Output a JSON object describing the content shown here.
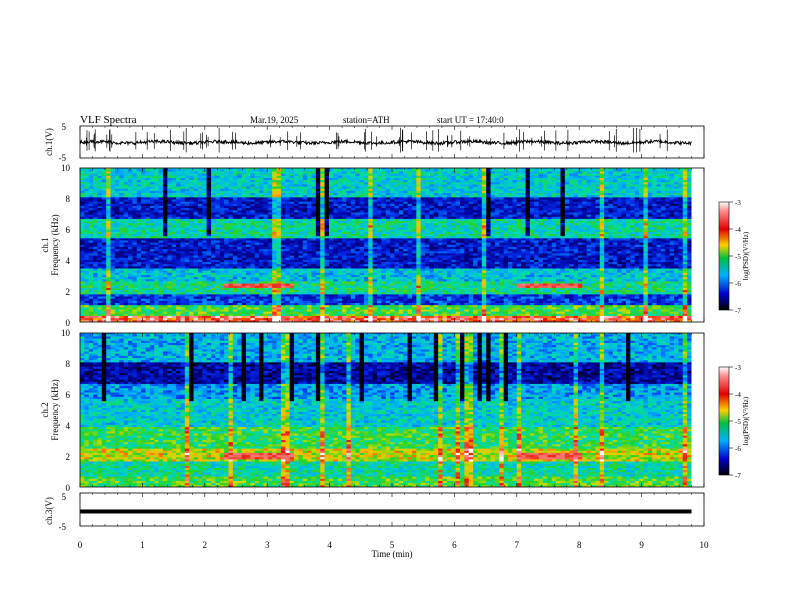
{
  "header": {
    "title": "VLF  Spectra",
    "date": "Mar.19, 2025",
    "station": "station=ATH",
    "start": "start  UT  =    17:40:0"
  },
  "colorbar": {
    "label": "log(PSD)(V²/Hz)",
    "ticks": [
      "-3",
      "-4",
      "-5",
      "-6",
      "-7"
    ],
    "stops": [
      "#ffffff",
      "#ff8080",
      "#e00000",
      "#ffcc00",
      "#00c040",
      "#00b0ff",
      "#0000cc",
      "#000000"
    ]
  },
  "chart_data": [
    {
      "type": "line",
      "panel": "ch1-waveform",
      "ylabel": "ch.1(V)",
      "ylim": [
        -5,
        5
      ],
      "yticks": [
        "5",
        "-5"
      ],
      "xlim": [
        0,
        10
      ],
      "series": [
        {
          "baseline": -0.1,
          "noise": 0.5
        }
      ]
    },
    {
      "type": "heatmap",
      "panel": "ch1-spectrogram",
      "ylabel": "ch.1\nFrequency (kHz)",
      "ylim": [
        0,
        10
      ],
      "yticks": [
        "10",
        "8",
        "6",
        "4",
        "2",
        "0"
      ],
      "xlim": [
        0,
        9.8
      ],
      "zlim": [
        -7,
        -3
      ],
      "bands_khz": [
        {
          "f0": 0.0,
          "f1": 0.4,
          "level": -3.5
        },
        {
          "f0": 0.4,
          "f1": 1.0,
          "level": -4.6
        },
        {
          "f0": 1.0,
          "f1": 1.8,
          "level": -6.0
        },
        {
          "f0": 1.8,
          "f1": 2.6,
          "level": -4.9
        },
        {
          "f0": 2.6,
          "f1": 3.4,
          "level": -5.3
        },
        {
          "f0": 3.4,
          "f1": 5.4,
          "level": -6.2
        },
        {
          "f0": 5.4,
          "f1": 6.6,
          "level": -5.0
        },
        {
          "f0": 6.6,
          "f1": 8.0,
          "level": -6.2
        },
        {
          "f0": 8.0,
          "f1": 10.0,
          "level": -5.2
        }
      ],
      "events_min": [
        [
          2.3,
          3.4
        ],
        [
          7.0,
          8.0
        ]
      ],
      "event_freq_khz": 2.3
    },
    {
      "type": "heatmap",
      "panel": "ch2-spectrogram",
      "ylabel": "ch.2\nFrequency (kHz)",
      "ylim": [
        0,
        10
      ],
      "yticks": [
        "10",
        "8",
        "6",
        "4",
        "2",
        "0"
      ],
      "xlim": [
        0,
        9.8
      ],
      "zlim": [
        -7,
        -3
      ],
      "bands_khz": [
        {
          "f0": 0.0,
          "f1": 0.6,
          "level": -4.6
        },
        {
          "f0": 0.6,
          "f1": 1.6,
          "level": -5.0
        },
        {
          "f0": 1.6,
          "f1": 2.4,
          "level": -4.2
        },
        {
          "f0": 2.4,
          "f1": 3.8,
          "level": -4.7
        },
        {
          "f0": 3.8,
          "f1": 5.6,
          "level": -5.2
        },
        {
          "f0": 5.6,
          "f1": 6.6,
          "level": -5.5
        },
        {
          "f0": 6.6,
          "f1": 8.0,
          "level": -6.4
        },
        {
          "f0": 8.0,
          "f1": 10.0,
          "level": -5.4
        }
      ],
      "events_min": [
        [
          2.3,
          3.4
        ],
        [
          7.0,
          8.0
        ]
      ],
      "event_freq_khz": 2.0
    },
    {
      "type": "line",
      "panel": "ch3-waveform",
      "ylabel": "ch.3(V)",
      "ylim": [
        -5,
        5
      ],
      "yticks": [
        "5",
        "-5"
      ],
      "xlim": [
        0,
        10
      ],
      "xlabel": "Time  (min)",
      "xticks": [
        "0",
        "1",
        "2",
        "3",
        "4",
        "5",
        "6",
        "7",
        "8",
        "9",
        "10"
      ],
      "series": [
        {
          "baseline": -0.6,
          "noise": 0.05
        }
      ]
    }
  ]
}
